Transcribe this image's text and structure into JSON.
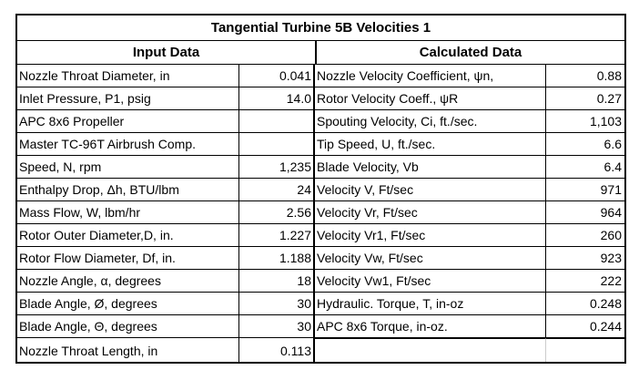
{
  "title": "Tangential Turbine 5B Velocities 1",
  "headers": {
    "input": "Input Data",
    "calculated": "Calculated Data"
  },
  "rows": [
    {
      "in_label": "Nozzle Throat Diameter, in",
      "in_value": "0.041",
      "out_label": "Nozzle Velocity Coefficient, ψn,",
      "out_value": "0.88"
    },
    {
      "in_label": "Inlet Pressure, P1, psig",
      "in_value": "14.0",
      "out_label": "Rotor Velocity Coeff., ψR",
      "out_value": "0.27"
    },
    {
      "in_label": "APC 8x6 Propeller",
      "in_value": "",
      "out_label": "Spouting Velocity, Ci, ft./sec.",
      "out_value": "1,103"
    },
    {
      "in_label": "Master TC-96T Airbrush Comp.",
      "in_value": "",
      "out_label": "Tip Speed, U, ft./sec.",
      "out_value": "6.6"
    },
    {
      "in_label": "Speed, N, rpm",
      "in_value": "1,235",
      "out_label": "Blade Velocity, Vb",
      "out_value": "6.4"
    },
    {
      "in_label": "Enthalpy Drop, Δh, BTU/lbm",
      "in_value": "24",
      "out_label": "Velocity V, Ft/sec",
      "out_value": "971"
    },
    {
      "in_label": "Mass Flow, W, lbm/hr",
      "in_value": "2.56",
      "out_label": "Velocity Vr, Ft/sec",
      "out_value": "964"
    },
    {
      "in_label": "Rotor Outer Diameter,D, in.",
      "in_value": "1.227",
      "out_label": "Velocity Vr1, Ft/sec",
      "out_value": "260"
    },
    {
      "in_label": "Rotor Flow Diameter, Df, in.",
      "in_value": "1.188",
      "out_label": "Velocity Vw, Ft/sec",
      "out_value": "923"
    },
    {
      "in_label": "Nozzle Angle, α, degrees",
      "in_value": "18",
      "out_label": "Velocity Vw1, Ft/sec",
      "out_value": "222"
    },
    {
      "in_label": "Blade Angle, Ø, degrees",
      "in_value": "30",
      "out_label": "Hydraulic. Torque, T, in-oz",
      "out_value": "0.248"
    },
    {
      "in_label": "Blade Angle, Θ, degrees",
      "in_value": "30",
      "out_label": "APC 8x6 Torque, in-oz.",
      "out_value": "0.244"
    },
    {
      "in_label": "Nozzle Throat Length, in",
      "in_value": "0.113",
      "out_label": "",
      "out_value": ""
    }
  ]
}
